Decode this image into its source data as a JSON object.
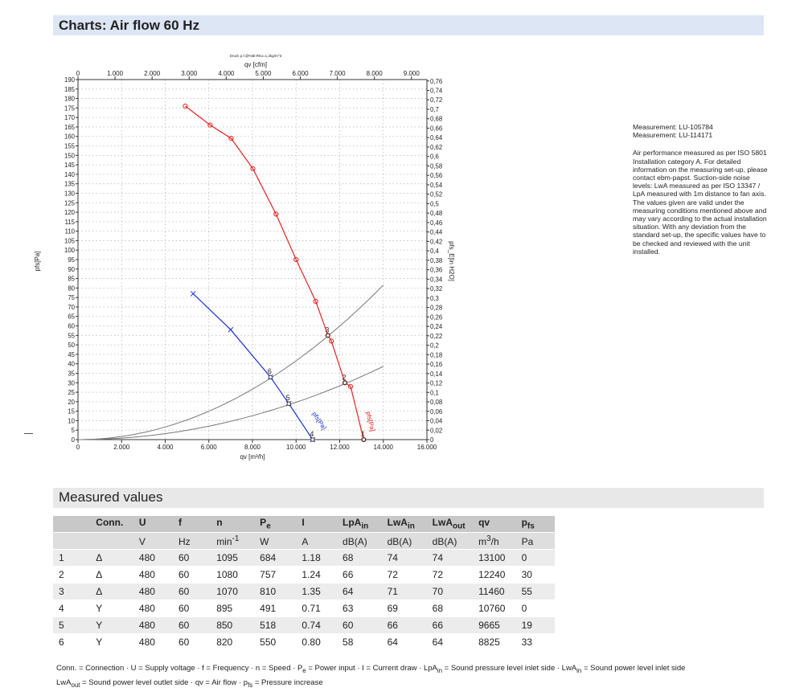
{
  "header": {
    "title": "Charts: Air flow 60 Hz"
  },
  "notes": {
    "measurements": [
      "Measurement: LU-105784",
      "Measurement: LU-114171"
    ],
    "description": "Air performance measured as per ISO 5801 Installation category A. For detailed information on the measuring set-up, please contact ebm-papst. Suction-side noise levels: LwA measured as per ISO 13347 / LpA measured with 1m distance to fan axis. The values given are valid under the measuring conditions mentioned above and may vary according to the actual installation situation. With any deviation from the standard set-up, the specific values have to be checked and reviewed with the unit installed."
  },
  "chart_data": {
    "type": "line",
    "caption": "Druck p.f.@%Bl Rho=1,2kg/m^3",
    "xlabel": "qv [m³/h]",
    "x2label": "qv [cfm]",
    "ylabel": "pfs[Pa]",
    "y2label": "pfs_E[in H2O]",
    "xlim": [
      0,
      16000
    ],
    "ylim": [
      0,
      190
    ],
    "x2lim": [
      0,
      9417
    ],
    "y2lim": [
      0,
      0.763
    ],
    "grid": true,
    "x_ticks": [
      "0",
      "2.000",
      "4.000",
      "6.000",
      "8.000",
      "10.000",
      "12.000",
      "14.000",
      "16.000"
    ],
    "x2_ticks": [
      "0",
      "1.000",
      "2.000",
      "3.000",
      "4.000",
      "5.000",
      "6.000",
      "7.000",
      "8.000",
      "9.000"
    ],
    "y_ticks": [
      "0",
      "5",
      "10",
      "15",
      "20",
      "25",
      "30",
      "35",
      "40",
      "45",
      "50",
      "55",
      "60",
      "65",
      "70",
      "75",
      "80",
      "85",
      "90",
      "95",
      "100",
      "105",
      "110",
      "115",
      "120",
      "125",
      "130",
      "135",
      "140",
      "145",
      "150",
      "155",
      "160",
      "165",
      "170",
      "175",
      "180",
      "185",
      "190"
    ],
    "y2_ticks": [
      "0",
      "0,02",
      "0,04",
      "0,06",
      "0,08",
      "0,1",
      "0,12",
      "0,14",
      "0,16",
      "0,18",
      "0,2",
      "0,22",
      "0,24",
      "0,26",
      "0,28",
      "0,3",
      "0,32",
      "0,34",
      "0,36",
      "0,38",
      "0,4",
      "0,42",
      "0,44",
      "0,46",
      "0,48",
      "0,5",
      "0,52",
      "0,54",
      "0,56",
      "0,58",
      "0,6",
      "0,62",
      "0,64",
      "0,66",
      "0,68",
      "0,7",
      "0,72",
      "0,74",
      "0,76"
    ],
    "series": [
      {
        "name": "pfs[Pa]",
        "color": "#e82020",
        "marker": "circle",
        "x": [
          4920,
          6060,
          7020,
          8020,
          9080,
          10000,
          10900,
          11460,
          11620,
          12240,
          12500,
          13100
        ],
        "y": [
          176,
          166,
          159,
          143,
          119,
          95,
          73,
          55,
          52,
          30,
          28,
          0
        ]
      },
      {
        "name": "pfs[Pa]",
        "color": "#1a2fd8",
        "marker": "cross",
        "x": [
          5280,
          7000,
          8825,
          9665,
          10760
        ],
        "y": [
          77,
          58,
          33,
          19,
          0
        ]
      }
    ],
    "system_curves": [
      {
        "color": "#777777",
        "k": 4.16e-07,
        "x_end": 14000
      },
      {
        "color": "#777777",
        "k": 1.97e-07,
        "x_end": 14000
      }
    ],
    "operating_points": [
      {
        "label": "1",
        "x": 13100,
        "y": 0
      },
      {
        "label": "2",
        "x": 12240,
        "y": 30
      },
      {
        "label": "3",
        "x": 11460,
        "y": 55
      },
      {
        "label": "4",
        "x": 10760,
        "y": 0
      },
      {
        "label": "5",
        "x": 9665,
        "y": 19
      },
      {
        "label": "6",
        "x": 8825,
        "y": 33
      }
    ]
  },
  "measured": {
    "title": "Measured values",
    "headers": [
      "",
      "Conn.",
      "U",
      "f",
      "n",
      "P",
      "I",
      "LpA",
      "LwA",
      "LwA",
      "qv",
      "p"
    ],
    "header_subs": [
      "",
      "",
      "",
      "",
      "",
      "e",
      "",
      "in",
      "in",
      "out",
      "",
      "fs"
    ],
    "units": [
      "",
      "",
      "V",
      "Hz",
      "min",
      "W",
      "A",
      "dB(A)",
      "dB(A)",
      "dB(A)",
      "m",
      "Pa"
    ],
    "unit_sups": [
      "",
      "",
      "",
      "",
      "-1",
      "",
      "",
      "",
      "",
      "",
      "3",
      ""
    ],
    "unit_tails": [
      "",
      "",
      "",
      "",
      "",
      "",
      "",
      "",
      "",
      "",
      "/h",
      ""
    ],
    "rows": [
      [
        "1",
        "Δ",
        "480",
        "60",
        "1095",
        "684",
        "1.18",
        "68",
        "74",
        "74",
        "13100",
        "0"
      ],
      [
        "2",
        "Δ",
        "480",
        "60",
        "1080",
        "757",
        "1.24",
        "66",
        "72",
        "72",
        "12240",
        "30"
      ],
      [
        "3",
        "Δ",
        "480",
        "60",
        "1070",
        "810",
        "1.35",
        "64",
        "71",
        "70",
        "11460",
        "55"
      ],
      [
        "4",
        "Y",
        "480",
        "60",
        "895",
        "491",
        "0.71",
        "63",
        "69",
        "68",
        "10760",
        "0"
      ],
      [
        "5",
        "Y",
        "480",
        "60",
        "850",
        "518",
        "0.74",
        "60",
        "66",
        "66",
        "9665",
        "19"
      ],
      [
        "6",
        "Y",
        "480",
        "60",
        "820",
        "550",
        "0.80",
        "58",
        "64",
        "64",
        "8825",
        "33"
      ]
    ]
  },
  "legend": {
    "parts": [
      "Conn. = Connection · U = Supply voltage · f = Frequency · n = Speed · P",
      "e",
      " = Power input · I = Current draw · LpA",
      "in",
      " = Sound pressure level inlet side · LwA",
      "in",
      " = Sound power level inlet side",
      "LwA",
      "out",
      " = Sound power level outlet side · qv = Air flow · p",
      "fs",
      " = Pressure increase"
    ]
  }
}
